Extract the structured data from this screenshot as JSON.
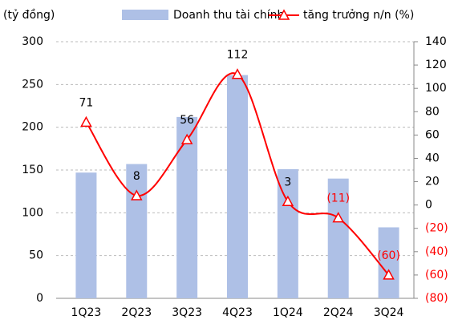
{
  "chart_data": {
    "type": "bar-line",
    "y_label": "(tỷ đồng)",
    "categories": [
      "1Q23",
      "2Q23",
      "3Q23",
      "4Q23",
      "1Q24",
      "2Q24",
      "3Q24"
    ],
    "series": [
      {
        "name": "Doanh thu tài chính",
        "type": "bar",
        "color": "#aec0e6",
        "values": [
          147,
          157,
          212,
          261,
          151,
          140,
          83
        ]
      },
      {
        "name": "tăng trưởng n/n (%)",
        "type": "line",
        "axis": "y2",
        "color": "#ff0000",
        "values": [
          71,
          8,
          56,
          112,
          3,
          -11,
          -60
        ],
        "value_labels": [
          "71",
          "8",
          "56",
          "112",
          "3",
          "(11)",
          "(60)"
        ]
      }
    ],
    "ylim": [
      0,
      300
    ],
    "yticks": [
      0,
      50,
      100,
      150,
      200,
      250,
      300
    ],
    "y2lim": [
      -80,
      140
    ],
    "y2ticks": [
      {
        "value": -80,
        "label": "(80)"
      },
      {
        "value": -60,
        "label": "(60)"
      },
      {
        "value": -40,
        "label": "(40)"
      },
      {
        "value": -20,
        "label": "(20)"
      },
      0,
      20,
      40,
      60,
      80,
      100,
      120,
      140
    ],
    "negative_color": "#ff0000",
    "grid": true,
    "legend": "top"
  }
}
